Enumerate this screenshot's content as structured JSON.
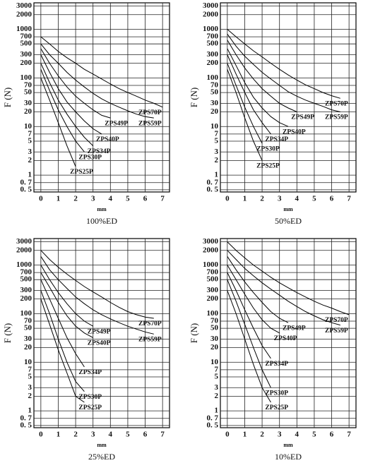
{
  "chart_data": [
    {
      "type": "line",
      "caption": "100%ED",
      "x_label": "mm",
      "y_label": "F (N)",
      "log_y": true,
      "grid": true,
      "color": "#000000",
      "xlim": [
        -0.4,
        7.4
      ],
      "ylim": [
        0.45,
        3500
      ],
      "xticks": [
        0,
        1,
        2,
        3,
        4,
        5,
        6,
        7
      ],
      "yticks": [
        {
          "value": 0.5,
          "label": "0. 5"
        },
        {
          "value": 0.7,
          "label": "0. 7"
        },
        1,
        2,
        3,
        5,
        7,
        10,
        20,
        30,
        50,
        70,
        100,
        200,
        300,
        500,
        700,
        1000,
        2000,
        3000
      ],
      "x": [
        0,
        0.5,
        1,
        1.5,
        2,
        2.5,
        3,
        3.5,
        4,
        4.5,
        5,
        5.5,
        6,
        6.5,
        7
      ],
      "series": [
        {
          "name": "ZPS70P",
          "values": [
            700,
            500,
            350,
            260,
            200,
            150,
            120,
            95,
            75,
            60,
            50,
            42,
            35,
            30,
            25
          ]
        },
        {
          "name": "ZPS59P",
          "values": [
            500,
            300,
            200,
            130,
            90,
            65,
            48,
            37,
            30,
            25,
            21,
            18,
            16,
            15,
            null
          ]
        },
        {
          "name": "ZPS49P",
          "values": [
            400,
            200,
            110,
            65,
            42,
            30,
            22,
            17,
            15,
            null,
            null,
            null,
            null,
            null,
            null
          ]
        },
        {
          "name": "ZPS40P",
          "values": [
            300,
            130,
            60,
            32,
            20,
            13,
            9,
            7,
            null,
            null,
            null,
            null,
            null,
            null,
            null
          ]
        },
        {
          "name": "ZPS34P",
          "values": [
            200,
            80,
            35,
            18,
            10,
            6,
            4,
            null,
            null,
            null,
            null,
            null,
            null,
            null,
            null
          ]
        },
        {
          "name": "ZPS30P",
          "values": [
            150,
            55,
            22,
            10,
            5,
            3,
            null,
            null,
            null,
            null,
            null,
            null,
            null,
            null,
            null
          ]
        },
        {
          "name": "ZPS25P",
          "values": [
            100,
            35,
            12,
            4,
            1.5,
            null,
            null,
            null,
            null,
            null,
            null,
            null,
            null,
            null,
            null
          ]
        }
      ]
    },
    {
      "type": "line",
      "caption": "50%ED",
      "x_label": "mm",
      "y_label": "F (N)",
      "log_y": true,
      "grid": true,
      "color": "#000000",
      "xlim": [
        -0.4,
        7.4
      ],
      "ylim": [
        0.45,
        3500
      ],
      "xticks": [
        0,
        1,
        2,
        3,
        4,
        5,
        6,
        7
      ],
      "yticks": [
        {
          "value": 0.5,
          "label": "0. 5"
        },
        {
          "value": 0.7,
          "label": "0. 7"
        },
        1,
        2,
        3,
        5,
        7,
        10,
        20,
        30,
        50,
        70,
        100,
        200,
        300,
        500,
        700,
        1000,
        2000,
        3000
      ],
      "x": [
        0,
        0.5,
        1,
        1.5,
        2,
        2.5,
        3,
        3.5,
        4,
        4.5,
        5,
        5.5,
        6,
        6.5,
        7
      ],
      "series": [
        {
          "name": "ZPS70P",
          "values": [
            1000,
            700,
            500,
            360,
            270,
            200,
            150,
            115,
            90,
            72,
            60,
            50,
            43,
            38,
            null
          ]
        },
        {
          "name": "ZPS59P",
          "values": [
            800,
            450,
            280,
            190,
            130,
            95,
            70,
            52,
            42,
            35,
            30,
            26,
            22,
            20,
            null
          ]
        },
        {
          "name": "ZPS49P",
          "values": [
            600,
            300,
            160,
            95,
            60,
            42,
            30,
            24,
            20,
            null,
            null,
            null,
            null,
            null,
            null
          ]
        },
        {
          "name": "ZPS40P",
          "values": [
            400,
            180,
            80,
            40,
            24,
            16,
            12,
            10,
            null,
            null,
            null,
            null,
            null,
            null,
            null
          ]
        },
        {
          "name": "ZPS34P",
          "values": [
            300,
            120,
            50,
            22,
            12,
            7,
            null,
            null,
            null,
            null,
            null,
            null,
            null,
            null,
            null
          ]
        },
        {
          "name": "ZPS30P",
          "values": [
            200,
            70,
            25,
            10,
            4.5,
            null,
            null,
            null,
            null,
            null,
            null,
            null,
            null,
            null,
            null
          ]
        },
        {
          "name": "ZPS25P",
          "values": [
            150,
            50,
            15,
            5,
            2,
            null,
            null,
            null,
            null,
            null,
            null,
            null,
            null,
            null,
            null
          ]
        }
      ]
    },
    {
      "type": "line",
      "caption": "25%ED",
      "x_label": "mm",
      "y_label": "F (N)",
      "log_y": true,
      "grid": true,
      "color": "#000000",
      "xlim": [
        -0.4,
        7.4
      ],
      "ylim": [
        0.45,
        3500
      ],
      "xticks": [
        0,
        1,
        2,
        3,
        4,
        5,
        6,
        7
      ],
      "yticks": [
        {
          "value": 0.5,
          "label": "0. 5"
        },
        {
          "value": 0.7,
          "label": "0. 7"
        },
        1,
        2,
        3,
        5,
        7,
        10,
        20,
        30,
        50,
        70,
        100,
        200,
        300,
        500,
        700,
        1000,
        2000,
        3000
      ],
      "x": [
        0,
        0.5,
        1,
        1.5,
        2,
        2.5,
        3,
        3.5,
        4,
        4.5,
        5,
        5.5,
        6,
        6.5,
        7
      ],
      "series": [
        {
          "name": "ZPS70P",
          "values": [
            2000,
            1300,
            900,
            650,
            480,
            360,
            280,
            220,
            170,
            135,
            110,
            95,
            85,
            80,
            null
          ]
        },
        {
          "name": "ZPS59P",
          "values": [
            1500,
            800,
            500,
            330,
            220,
            160,
            120,
            95,
            78,
            65,
            55,
            48,
            42,
            38,
            null
          ]
        },
        {
          "name": "ZPS49P",
          "values": [
            1000,
            500,
            270,
            160,
            100,
            70,
            55,
            null,
            null,
            null,
            null,
            null,
            null,
            null,
            null
          ]
        },
        {
          "name": "ZPS40P",
          "values": [
            700,
            350,
            170,
            90,
            55,
            40,
            32,
            null,
            null,
            null,
            null,
            null,
            null,
            null,
            null
          ]
        },
        {
          "name": "ZPS34P",
          "values": [
            500,
            200,
            80,
            32,
            15,
            8,
            null,
            null,
            null,
            null,
            null,
            null,
            null,
            null,
            null
          ]
        },
        {
          "name": "ZPS30P",
          "values": [
            300,
            100,
            30,
            10,
            4,
            2.5,
            null,
            null,
            null,
            null,
            null,
            null,
            null,
            null,
            null
          ]
        },
        {
          "name": "ZPS25P",
          "values": [
            200,
            60,
            18,
            6,
            2,
            1.5,
            null,
            null,
            null,
            null,
            null,
            null,
            null,
            null,
            null
          ]
        }
      ]
    },
    {
      "type": "line",
      "caption": "10%ED",
      "x_label": "mm",
      "y_label": "F (N)",
      "log_y": true,
      "grid": true,
      "color": "#000000",
      "xlim": [
        -0.4,
        7.4
      ],
      "ylim": [
        0.45,
        3500
      ],
      "xticks": [
        0,
        1,
        2,
        3,
        4,
        5,
        6,
        7
      ],
      "yticks": [
        {
          "value": 0.5,
          "label": "0. 5"
        },
        {
          "value": 0.7,
          "label": "0. 7"
        },
        1,
        2,
        3,
        5,
        7,
        10,
        20,
        30,
        50,
        70,
        100,
        200,
        300,
        500,
        700,
        1000,
        2000,
        3000
      ],
      "x": [
        0,
        0.5,
        1,
        1.5,
        2,
        2.5,
        3,
        3.5,
        4,
        4.5,
        5,
        5.5,
        6,
        6.5,
        7
      ],
      "series": [
        {
          "name": "ZPS70P",
          "values": [
            3000,
            2000,
            1400,
            1000,
            750,
            560,
            430,
            340,
            270,
            220,
            180,
            150,
            130,
            110,
            95
          ]
        },
        {
          "name": "ZPS59P",
          "values": [
            2000,
            1300,
            850,
            600,
            430,
            320,
            240,
            180,
            140,
            110,
            90,
            75,
            65,
            58,
            null
          ]
        },
        {
          "name": "ZPS49P",
          "values": [
            1500,
            800,
            450,
            270,
            170,
            110,
            80,
            65,
            null,
            null,
            null,
            null,
            null,
            null,
            null
          ]
        },
        {
          "name": "ZPS40P",
          "values": [
            1000,
            500,
            250,
            130,
            75,
            50,
            40,
            null,
            null,
            null,
            null,
            null,
            null,
            null,
            null
          ]
        },
        {
          "name": "ZPS34P",
          "values": [
            700,
            300,
            120,
            50,
            22,
            12,
            null,
            null,
            null,
            null,
            null,
            null,
            null,
            null,
            null
          ]
        },
        {
          "name": "ZPS30P",
          "values": [
            500,
            180,
            60,
            20,
            7,
            3,
            null,
            null,
            null,
            null,
            null,
            null,
            null,
            null,
            null
          ]
        },
        {
          "name": "ZPS25P",
          "values": [
            300,
            100,
            30,
            9,
            3,
            1.5,
            null,
            null,
            null,
            null,
            null,
            null,
            null,
            null,
            null
          ]
        }
      ]
    }
  ]
}
